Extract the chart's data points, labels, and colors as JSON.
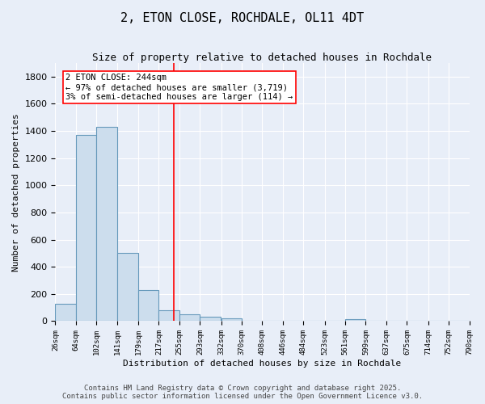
{
  "title": "2, ETON CLOSE, ROCHDALE, OL11 4DT",
  "subtitle": "Size of property relative to detached houses in Rochdale",
  "xlabel": "Distribution of detached houses by size in Rochdale",
  "ylabel": "Number of detached properties",
  "bar_left_edges": [
    26,
    64,
    102,
    141,
    179,
    217,
    255,
    293,
    332,
    370,
    408,
    446,
    484,
    523,
    561,
    599,
    637,
    675,
    714,
    752
  ],
  "bar_heights": [
    130,
    1370,
    1430,
    500,
    230,
    80,
    50,
    30,
    20,
    0,
    0,
    0,
    0,
    0,
    15,
    0,
    0,
    0,
    0,
    5
  ],
  "bin_width": 38,
  "bar_color": "#ccdded",
  "bar_edge_color": "#6699bb",
  "vline_x": 244,
  "vline_color": "red",
  "annotation_text": "2 ETON CLOSE: 244sqm\n← 97% of detached houses are smaller (3,719)\n3% of semi-detached houses are larger (114) →",
  "annotation_box_color": "white",
  "annotation_box_edge_color": "red",
  "ylim": [
    0,
    1900
  ],
  "yticks": [
    0,
    200,
    400,
    600,
    800,
    1000,
    1200,
    1400,
    1600,
    1800
  ],
  "tick_labels": [
    "26sqm",
    "64sqm",
    "102sqm",
    "141sqm",
    "179sqm",
    "217sqm",
    "255sqm",
    "293sqm",
    "332sqm",
    "370sqm",
    "408sqm",
    "446sqm",
    "484sqm",
    "523sqm",
    "561sqm",
    "599sqm",
    "637sqm",
    "675sqm",
    "714sqm",
    "752sqm",
    "790sqm"
  ],
  "footer_line1": "Contains HM Land Registry data © Crown copyright and database right 2025.",
  "footer_line2": "Contains public sector information licensed under the Open Government Licence v3.0.",
  "bg_color": "#e8eef8",
  "plot_bg_color": "#e8eef8",
  "title_fontsize": 11,
  "subtitle_fontsize": 9,
  "footer_fontsize": 6.5,
  "annotation_fontsize": 7.5,
  "ylabel_fontsize": 8,
  "xlabel_fontsize": 8,
  "ytick_fontsize": 8,
  "xtick_fontsize": 6.5
}
